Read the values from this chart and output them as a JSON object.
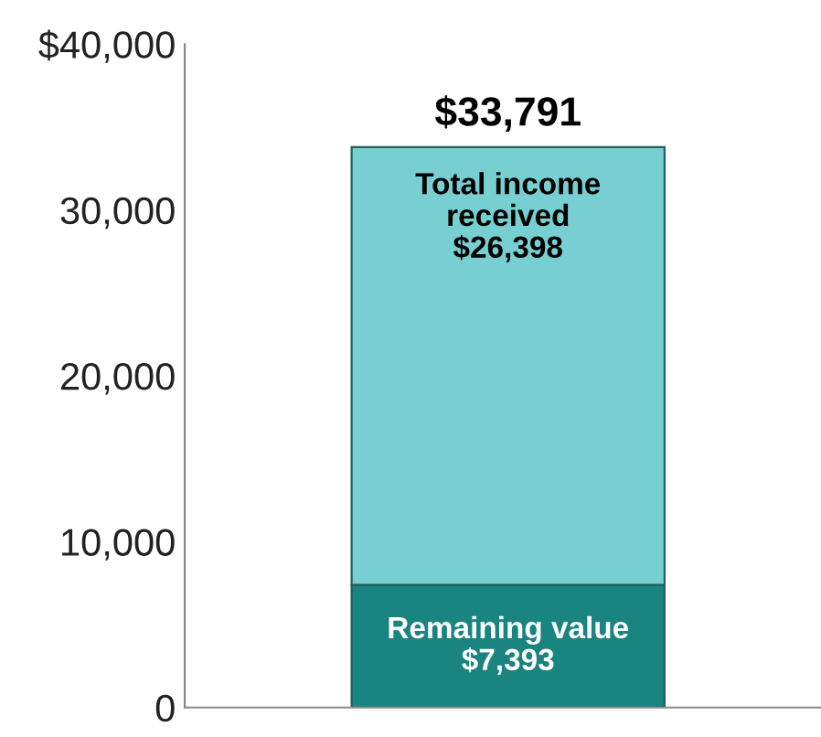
{
  "chart_data": {
    "type": "bar",
    "stacked": true,
    "categories": [
      null
    ],
    "series": [
      {
        "color": "#1a8480",
        "values": [
          7393
        ],
        "value_labels": [
          "Remaining value\n$7,393"
        ]
      },
      {
        "color": "#77cfd1",
        "values": [
          26398
        ],
        "value_labels": [
          "Total income\nreceived\n$26,398"
        ]
      }
    ],
    "totals": [
      "$33,791"
    ],
    "ylim": [
      0,
      40000
    ],
    "yticks": [
      {
        "value": 0,
        "label": "0"
      },
      {
        "value": 10000,
        "label": "10,000"
      },
      {
        "value": 20000,
        "label": "20,000"
      },
      {
        "value": 30000,
        "label": "30,000"
      },
      {
        "value": 40000,
        "label": "$40,000"
      }
    ],
    "grid": false,
    "legend": false
  }
}
